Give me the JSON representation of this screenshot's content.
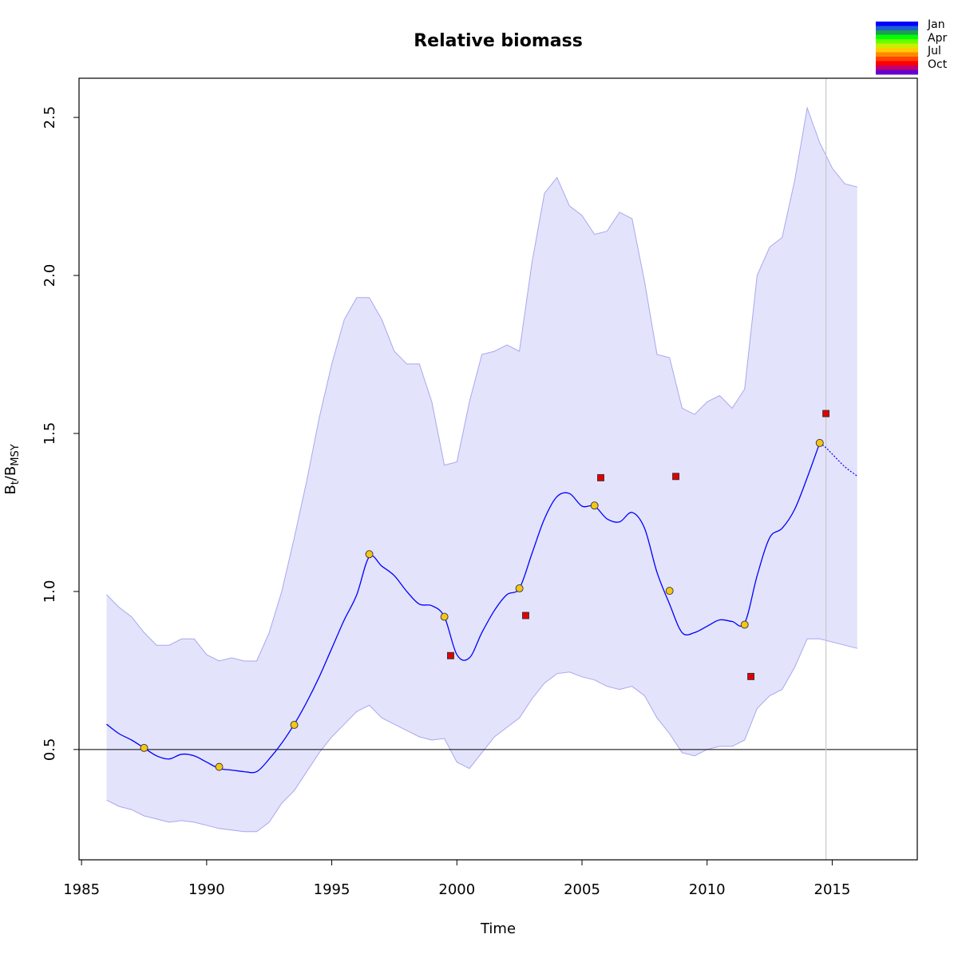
{
  "chart_data": {
    "type": "line",
    "title": "Relative biomass",
    "xlabel": "Time",
    "ylabel": {
      "main": "B",
      "sub1": "t",
      "slash": "/B",
      "sub2": "MSY"
    },
    "xlim": [
      1984.9,
      2018.4
    ],
    "ylim": [
      0.151,
      2.624
    ],
    "xticks": [
      1985,
      1990,
      1995,
      2000,
      2005,
      2010,
      2015
    ],
    "xtick_labels": [
      "1985",
      "1990",
      "1995",
      "2000",
      "2005",
      "2010",
      "2015"
    ],
    "yticks": [
      0.5,
      1.0,
      1.5,
      2.0,
      2.5
    ],
    "ytick_labels": [
      "0.5",
      "1.0",
      "1.5",
      "2.0",
      "2.5"
    ],
    "reference_line_y": 0.5,
    "vertical_line_x": 2014.75,
    "grid": false,
    "legend_placement": "top-right",
    "legend": {
      "labels": [
        "Jan",
        "Apr",
        "Jul",
        "Oct"
      ],
      "colors": [
        "#0000ff",
        "#1e5fcf",
        "#1aa050",
        "#00ff00",
        "#66ff00",
        "#ccee00",
        "#ffcc00",
        "#ff8800",
        "#ff4400",
        "#ff0000",
        "#c00070",
        "#6600cc"
      ]
    },
    "colors": {
      "estimate_line": "#0000ff",
      "ci_fill": "#e3e3fc",
      "ci_stroke": "#a8a8ee",
      "observed_points": "#f5c518",
      "predicted_points": "#e00000",
      "reference_line": "#000000",
      "vertical_line": "#c8c8c8"
    },
    "series": [
      {
        "role": "estimate",
        "x": [
          1986.0,
          1986.5,
          1987.0,
          1987.5,
          1988.0,
          1988.5,
          1989.0,
          1989.5,
          1990.0,
          1990.5,
          1991.0,
          1991.5,
          1992.0,
          1992.5,
          1993.0,
          1993.5,
          1994.0,
          1994.5,
          1995.0,
          1995.5,
          1996.0,
          1996.5,
          1997.0,
          1997.5,
          1998.0,
          1998.5,
          1999.0,
          1999.5,
          2000.0,
          2000.5,
          2001.0,
          2001.5,
          2002.0,
          2002.5,
          2003.0,
          2003.5,
          2004.0,
          2004.5,
          2005.0,
          2005.5,
          2006.0,
          2006.5,
          2007.0,
          2007.5,
          2008.0,
          2008.5,
          2009.0,
          2009.5,
          2010.0,
          2010.5,
          2011.0,
          2011.5,
          2012.0,
          2012.5,
          2013.0,
          2013.5,
          2014.0,
          2014.5
        ],
        "values": [
          0.58,
          0.55,
          0.53,
          0.505,
          0.48,
          0.47,
          0.485,
          0.48,
          0.46,
          0.44,
          0.435,
          0.43,
          0.43,
          0.47,
          0.52,
          0.58,
          0.65,
          0.73,
          0.82,
          0.91,
          0.99,
          1.11,
          1.08,
          1.05,
          1.0,
          0.96,
          0.955,
          0.92,
          0.8,
          0.79,
          0.87,
          0.94,
          0.99,
          1.01,
          1.12,
          1.23,
          1.3,
          1.31,
          1.27,
          1.27,
          1.23,
          1.22,
          1.25,
          1.2,
          1.06,
          0.96,
          0.87,
          0.87,
          0.89,
          0.91,
          0.905,
          0.9,
          1.05,
          1.17,
          1.2,
          1.26,
          1.36,
          1.47
        ]
      },
      {
        "role": "forecast",
        "x": [
          2014.5,
          2014.75,
          2015.0,
          2015.5,
          2016.0
        ],
        "values": [
          1.47,
          1.455,
          1.435,
          1.395,
          1.365
        ]
      },
      {
        "role": "ci_upper",
        "x": [
          1986.0,
          1986.5,
          1987.0,
          1987.5,
          1988.0,
          1988.5,
          1989.0,
          1989.5,
          1990.0,
          1990.5,
          1991.0,
          1991.5,
          1992.0,
          1992.5,
          1993.0,
          1993.5,
          1994.0,
          1994.5,
          1995.0,
          1995.5,
          1996.0,
          1996.5,
          1997.0,
          1997.5,
          1998.0,
          1998.5,
          1999.0,
          1999.5,
          2000.0,
          2000.5,
          2001.0,
          2001.5,
          2002.0,
          2002.5,
          2003.0,
          2003.5,
          2004.0,
          2004.5,
          2005.0,
          2005.5,
          2006.0,
          2006.5,
          2007.0,
          2007.5,
          2008.0,
          2008.5,
          2009.0,
          2009.5,
          2010.0,
          2010.5,
          2011.0,
          2011.5,
          2012.0,
          2012.5,
          2013.0,
          2013.5,
          2014.0,
          2014.5,
          2015.0,
          2015.5,
          2016.0
        ],
        "values": [
          0.99,
          0.95,
          0.92,
          0.87,
          0.83,
          0.83,
          0.85,
          0.85,
          0.8,
          0.78,
          0.79,
          0.78,
          0.78,
          0.87,
          1.0,
          1.17,
          1.35,
          1.55,
          1.72,
          1.86,
          1.93,
          1.93,
          1.86,
          1.76,
          1.72,
          1.72,
          1.6,
          1.4,
          1.41,
          1.6,
          1.75,
          1.76,
          1.78,
          1.76,
          2.04,
          2.26,
          2.31,
          2.22,
          2.19,
          2.13,
          2.14,
          2.2,
          2.18,
          1.98,
          1.75,
          1.74,
          1.58,
          1.56,
          1.6,
          1.62,
          1.58,
          1.64,
          2.0,
          2.09,
          2.12,
          2.3,
          2.53,
          2.42,
          2.34,
          2.29,
          2.28
        ]
      },
      {
        "role": "ci_lower",
        "x": [
          1986.0,
          1986.5,
          1987.0,
          1987.5,
          1988.0,
          1988.5,
          1989.0,
          1989.5,
          1990.0,
          1990.5,
          1991.0,
          1991.5,
          1992.0,
          1992.5,
          1993.0,
          1993.5,
          1994.0,
          1994.5,
          1995.0,
          1995.5,
          1996.0,
          1996.5,
          1997.0,
          1997.5,
          1998.0,
          1998.5,
          1999.0,
          1999.5,
          2000.0,
          2000.5,
          2001.0,
          2001.5,
          2002.0,
          2002.5,
          2003.0,
          2003.5,
          2004.0,
          2004.5,
          2005.0,
          2005.5,
          2006.0,
          2006.5,
          2007.0,
          2007.5,
          2008.0,
          2008.5,
          2009.0,
          2009.5,
          2010.0,
          2010.5,
          2011.0,
          2011.5,
          2012.0,
          2012.5,
          2013.0,
          2013.5,
          2014.0,
          2014.5,
          2015.0,
          2015.5,
          2016.0
        ],
        "values": [
          0.34,
          0.32,
          0.31,
          0.29,
          0.28,
          0.27,
          0.275,
          0.27,
          0.26,
          0.25,
          0.245,
          0.24,
          0.24,
          0.27,
          0.33,
          0.37,
          0.43,
          0.49,
          0.54,
          0.58,
          0.62,
          0.64,
          0.6,
          0.58,
          0.56,
          0.54,
          0.53,
          0.535,
          0.46,
          0.44,
          0.49,
          0.54,
          0.57,
          0.6,
          0.66,
          0.71,
          0.74,
          0.745,
          0.73,
          0.72,
          0.7,
          0.69,
          0.7,
          0.67,
          0.6,
          0.55,
          0.49,
          0.48,
          0.5,
          0.51,
          0.51,
          0.53,
          0.63,
          0.67,
          0.69,
          0.76,
          0.85,
          0.85,
          0.84,
          0.83,
          0.82
        ]
      },
      {
        "role": "observed",
        "x": [
          1987.5,
          1990.5,
          1993.5,
          1996.5,
          1999.5,
          2002.5,
          2005.5,
          2008.5,
          2011.5,
          2014.5
        ],
        "values": [
          0.505,
          0.445,
          0.578,
          1.118,
          0.92,
          1.01,
          1.272,
          1.002,
          0.895,
          1.47
        ]
      },
      {
        "role": "predicted",
        "x": [
          1999.75,
          2002.75,
          2005.75,
          2008.75,
          2011.75,
          2014.75
        ],
        "values": [
          0.797,
          0.924,
          1.36,
          1.364,
          0.731,
          1.563
        ]
      }
    ]
  }
}
